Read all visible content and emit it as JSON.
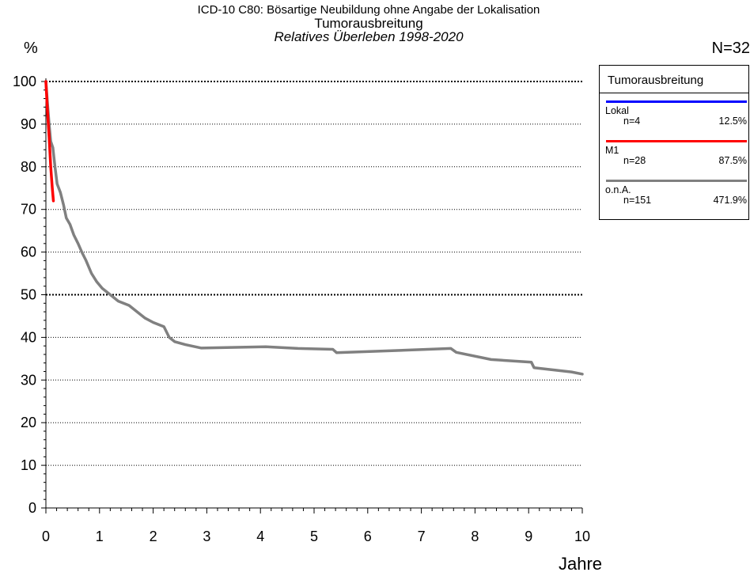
{
  "header": {
    "title_line1": "ICD-10 C80: Bösartige Neubildung ohne Angabe der Lokalisation",
    "title_line2": "Tumorausbreitung",
    "subtitle": "Relatives Überleben 1998-2020",
    "y_unit": "%",
    "n_total": "N=32",
    "x_unit": "Jahre"
  },
  "legend": {
    "title": "Tumorausbreitung",
    "entries": [
      {
        "name": "Lokal",
        "n": "n=4",
        "pct": "12.5%",
        "color": "#0000ff"
      },
      {
        "name": "M1",
        "n": "n=28",
        "pct": "87.5%",
        "color": "#ff0000"
      },
      {
        "name": "o.n.A.",
        "n": "n=151",
        "pct": "471.9%",
        "color": "#808080"
      }
    ]
  },
  "chart_data": {
    "type": "line",
    "title": "Tumorausbreitung",
    "subtitle": "Relatives Überleben 1998-2020",
    "xlabel": "Jahre",
    "ylabel": "%",
    "xlim": [
      0,
      10
    ],
    "ylim": [
      0,
      100
    ],
    "xticks": [
      0,
      1,
      2,
      3,
      4,
      5,
      6,
      7,
      8,
      9,
      10
    ],
    "yticks": [
      0,
      10,
      20,
      30,
      40,
      50,
      60,
      70,
      80,
      90,
      100
    ],
    "grid": "horizontal dotted",
    "legend_position": "right",
    "series": [
      {
        "name": "M1",
        "color": "#ff0000",
        "points": [
          [
            0,
            100
          ],
          [
            0.03,
            93
          ],
          [
            0.06,
            87
          ],
          [
            0.09,
            80
          ],
          [
            0.12,
            75
          ],
          [
            0.14,
            72
          ]
        ]
      },
      {
        "name": "o.n.A.",
        "color": "#808080",
        "points": [
          [
            0,
            100
          ],
          [
            0.03,
            95
          ],
          [
            0.06,
            90
          ],
          [
            0.09,
            86
          ],
          [
            0.13,
            84.5
          ],
          [
            0.17,
            80
          ],
          [
            0.21,
            76
          ],
          [
            0.27,
            74
          ],
          [
            0.33,
            71
          ],
          [
            0.38,
            68
          ],
          [
            0.45,
            66.5
          ],
          [
            0.52,
            64
          ],
          [
            0.6,
            62
          ],
          [
            0.67,
            60
          ],
          [
            0.75,
            58
          ],
          [
            0.85,
            55
          ],
          [
            0.95,
            53
          ],
          [
            1.05,
            51.5
          ],
          [
            1.2,
            50
          ],
          [
            1.35,
            48.5
          ],
          [
            1.55,
            47.5
          ],
          [
            1.7,
            46
          ],
          [
            1.85,
            44.5
          ],
          [
            2.0,
            43.5
          ],
          [
            2.2,
            42.5
          ],
          [
            2.3,
            40
          ],
          [
            2.4,
            39
          ],
          [
            2.6,
            38.3
          ],
          [
            2.9,
            37.5
          ],
          [
            4.1,
            37.8
          ],
          [
            4.7,
            37.4
          ],
          [
            5.35,
            37.2
          ],
          [
            5.42,
            36.4
          ],
          [
            6.5,
            36.9
          ],
          [
            7.55,
            37.4
          ],
          [
            7.65,
            36.5
          ],
          [
            8.3,
            34.8
          ],
          [
            9.05,
            34.2
          ],
          [
            9.1,
            32.9
          ],
          [
            9.8,
            31.9
          ],
          [
            10,
            31.4
          ]
        ]
      }
    ]
  }
}
